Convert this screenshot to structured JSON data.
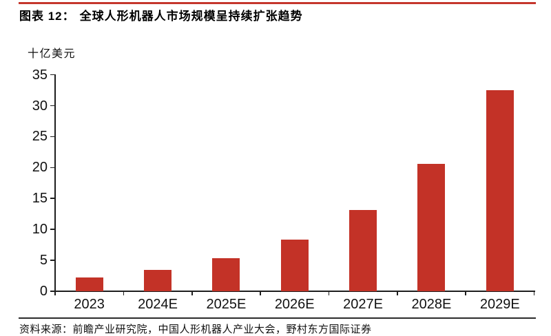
{
  "header": {
    "figure_label": "图表 12：",
    "title": "全球人形机器人市场规模呈持续扩张趋势"
  },
  "chart_data": {
    "type": "bar",
    "title": "全球人形机器人市场规模呈持续扩张趋势",
    "unit_label": "十亿美元",
    "categories": [
      "2023",
      "2024E",
      "2025E",
      "2026E",
      "2027E",
      "2028E",
      "2029E"
    ],
    "values": [
      2.2,
      3.4,
      5.3,
      8.4,
      13.1,
      20.6,
      32.5
    ],
    "xlabel": "",
    "ylabel": "十亿美元",
    "ylim": [
      0,
      35
    ],
    "yticks": [
      0,
      5,
      10,
      15,
      20,
      25,
      30,
      35
    ],
    "grid": false,
    "legend": "none",
    "bar_color": "#c33227"
  },
  "footer": {
    "source_label": "资料来源：",
    "source_text": "前瞻产业研究院，中国人形机器人产业大会，野村东方国际证券"
  },
  "colors": {
    "accent_red": "#c5362c",
    "bar_red": "#c33227",
    "axis_black": "#1d1d1d",
    "divider_black": "#2a2a2a"
  }
}
